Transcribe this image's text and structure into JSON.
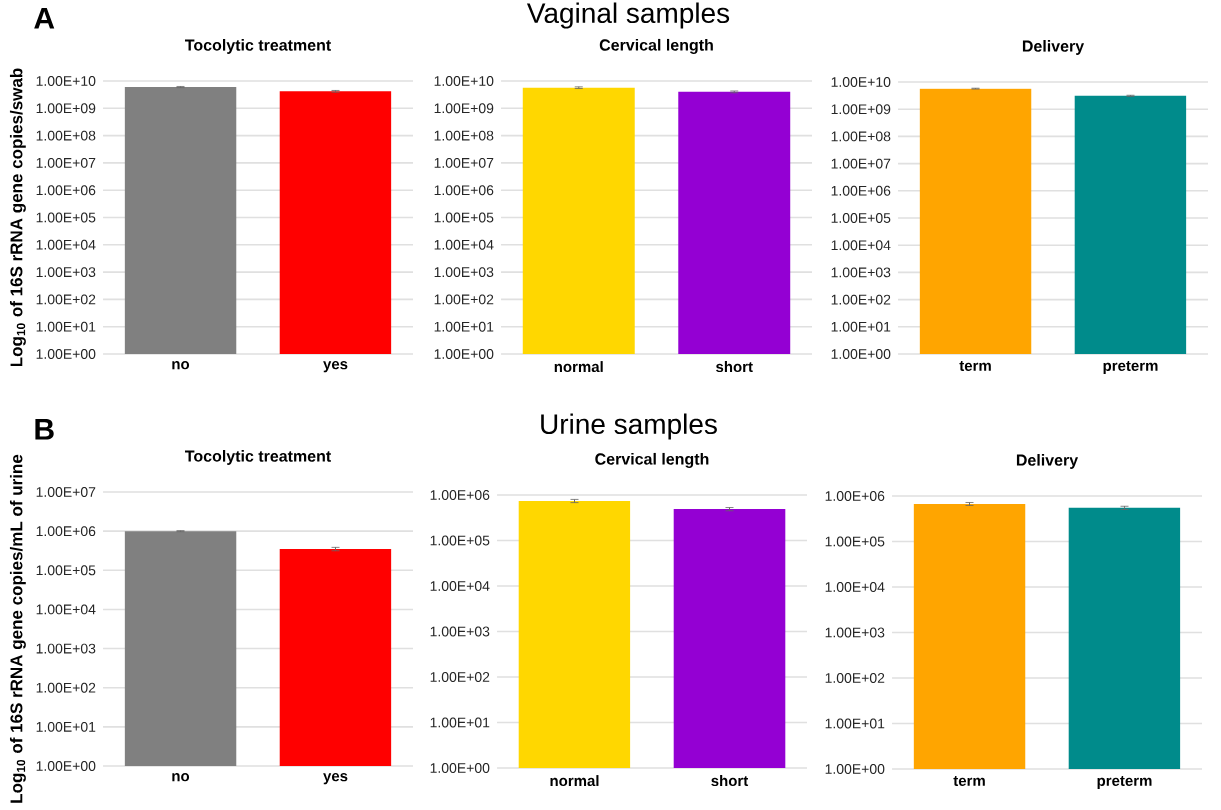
{
  "chart_data": [
    {
      "type": "bar",
      "title": "Tocolytic treatment",
      "ylabel": "Log$_{10}$ of 16S rRNA gene copies/swab",
      "annotations": [
        "A",
        "Vaginal samples"
      ],
      "categories": [
        "no",
        "yes"
      ],
      "values": [
        6000000000,
        4200000000
      ],
      "errors": [
        300000000,
        300000000
      ],
      "colors": [
        "#808080",
        "#ff0000"
      ],
      "log": true,
      "grid": "y",
      "ylim": [
        1,
        10000000000
      ],
      "yticks": [
        {
          "value": 1,
          "label": "1.00E+00"
        },
        {
          "value": 10,
          "label": "1.00E+01"
        },
        {
          "value": 100,
          "label": "1.00E+02"
        },
        {
          "value": 1000,
          "label": "1.00E+03"
        },
        {
          "value": 10000,
          "label": "1.00E+04"
        },
        {
          "value": 100000,
          "label": "1.00E+05"
        },
        {
          "value": 1000000,
          "label": "1.00E+06"
        },
        {
          "value": 10000000,
          "label": "1.00E+07"
        },
        {
          "value": 100000000,
          "label": "1.00E+08"
        },
        {
          "value": 1000000000,
          "label": "1.00E+09"
        },
        {
          "value": 10000000000,
          "label": "1.00E+10"
        }
      ]
    },
    {
      "type": "bar",
      "title": "Cervical length",
      "categories": [
        "normal",
        "short"
      ],
      "values": [
        5700000000,
        4000000000
      ],
      "errors": [
        400000000,
        300000000
      ],
      "colors": [
        "#ffd700",
        "#9400d3"
      ],
      "log": true,
      "grid": "y",
      "ylim": [
        1,
        10000000000
      ],
      "yticks": [
        {
          "value": 1,
          "label": "1.00E+00"
        },
        {
          "value": 10,
          "label": "1.00E+01"
        },
        {
          "value": 100,
          "label": "1.00E+02"
        },
        {
          "value": 1000,
          "label": "1.00E+03"
        },
        {
          "value": 10000,
          "label": "1.00E+04"
        },
        {
          "value": 100000,
          "label": "1.00E+05"
        },
        {
          "value": 1000000,
          "label": "1.00E+06"
        },
        {
          "value": 10000000,
          "label": "1.00E+07"
        },
        {
          "value": 100000000,
          "label": "1.00E+08"
        },
        {
          "value": 1000000000,
          "label": "1.00E+09"
        },
        {
          "value": 10000000000,
          "label": "1.00E+10"
        }
      ]
    },
    {
      "type": "bar",
      "title": "Delivery",
      "categories": [
        "term",
        "preterm"
      ],
      "values": [
        5700000000,
        3100000000
      ],
      "errors": [
        200000000,
        150000000
      ],
      "colors": [
        "#ffa500",
        "#008b8b"
      ],
      "log": true,
      "grid": "y",
      "ylim": [
        1,
        10000000000
      ],
      "yticks": [
        {
          "value": 1,
          "label": "1.00E+00"
        },
        {
          "value": 10,
          "label": "1.00E+01"
        },
        {
          "value": 100,
          "label": "1.00E+02"
        },
        {
          "value": 1000,
          "label": "1.00E+03"
        },
        {
          "value": 10000,
          "label": "1.00E+04"
        },
        {
          "value": 100000,
          "label": "1.00E+05"
        },
        {
          "value": 1000000,
          "label": "1.00E+06"
        },
        {
          "value": 10000000,
          "label": "1.00E+07"
        },
        {
          "value": 100000000,
          "label": "1.00E+08"
        },
        {
          "value": 1000000000,
          "label": "1.00E+09"
        },
        {
          "value": 10000000000,
          "label": "1.00E+10"
        }
      ]
    },
    {
      "type": "bar",
      "title": "Tocolytic treatment",
      "ylabel": "Log$_{10}$ of 16S rRNA gene copies/mL of urine",
      "annotations": [
        "B",
        "Urine samples"
      ],
      "categories": [
        "no",
        "yes"
      ],
      "values": [
        1000000,
        350000
      ],
      "errors": [
        30000,
        35000
      ],
      "colors": [
        "#808080",
        "#ff0000"
      ],
      "log": true,
      "grid": "y",
      "ylim": [
        1,
        10000000
      ],
      "yticks": [
        {
          "value": 1,
          "label": "1.00E+00"
        },
        {
          "value": 10,
          "label": "1.00E+01"
        },
        {
          "value": 100,
          "label": "1.00E+02"
        },
        {
          "value": 1000,
          "label": "1.00E+03"
        },
        {
          "value": 10000,
          "label": "1.00E+04"
        },
        {
          "value": 100000,
          "label": "1.00E+05"
        },
        {
          "value": 1000000,
          "label": "1.00E+06"
        },
        {
          "value": 10000000,
          "label": "1.00E+07"
        }
      ]
    },
    {
      "type": "bar",
      "title": "Cervical length",
      "categories": [
        "normal",
        "short"
      ],
      "values": [
        740000,
        490000
      ],
      "errors": [
        60000,
        40000
      ],
      "colors": [
        "#ffd700",
        "#9400d3"
      ],
      "log": true,
      "grid": "y",
      "ylim": [
        1,
        1000000
      ],
      "yticks": [
        {
          "value": 1,
          "label": "1.00E+00"
        },
        {
          "value": 10,
          "label": "1.00E+01"
        },
        {
          "value": 100,
          "label": "1.00E+02"
        },
        {
          "value": 1000,
          "label": "1.00E+03"
        },
        {
          "value": 10000,
          "label": "1.00E+04"
        },
        {
          "value": 100000,
          "label": "1.00E+05"
        },
        {
          "value": 1000000,
          "label": "1.00E+06"
        }
      ]
    },
    {
      "type": "bar",
      "title": "Delivery",
      "categories": [
        "term",
        "preterm"
      ],
      "values": [
        670000,
        550000
      ],
      "errors": [
        50000,
        45000
      ],
      "colors": [
        "#ffa500",
        "#008b8b"
      ],
      "log": true,
      "grid": "y",
      "ylim": [
        1,
        1000000
      ],
      "yticks": [
        {
          "value": 1,
          "label": "1.00E+00"
        },
        {
          "value": 10,
          "label": "1.00E+01"
        },
        {
          "value": 100,
          "label": "1.00E+02"
        },
        {
          "value": 1000,
          "label": "1.00E+03"
        },
        {
          "value": 10000,
          "label": "1.00E+04"
        },
        {
          "value": 100000,
          "label": "1.00E+05"
        },
        {
          "value": 1000000,
          "label": "1.00E+06"
        }
      ]
    }
  ]
}
